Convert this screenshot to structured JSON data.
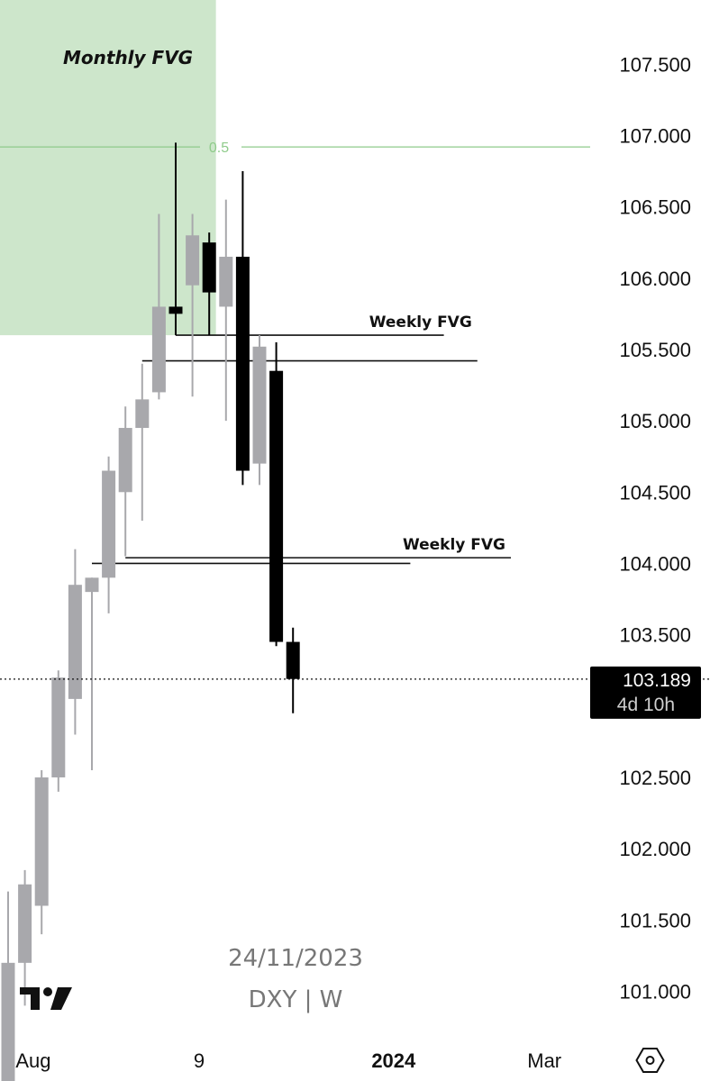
{
  "chart_data": {
    "type": "candlestick",
    "symbol": "DXY | W",
    "date": "24/11/2023",
    "current_price": "103.189",
    "countdown": "4d 10h",
    "ylim": [
      100.7,
      107.95
    ],
    "y_ticks": [
      "107.500",
      "107.000",
      "106.500",
      "106.000",
      "105.500",
      "105.000",
      "104.500",
      "104.000",
      "103.500",
      "103.000",
      "102.500",
      "102.000",
      "101.500",
      "101.000"
    ],
    "x_ticks": [
      {
        "label": "Aug",
        "bar": 1.5,
        "bold": false
      },
      {
        "label": "9",
        "bar": 11.4,
        "bold": false
      },
      {
        "label": "2024",
        "bar": 23.0,
        "bold": true
      },
      {
        "label": "Mar",
        "bar": 32.0,
        "bold": false
      }
    ],
    "candles": [
      {
        "o": 100.05,
        "h": 101.7,
        "l": 100.0,
        "c": 101.2,
        "dir": "up"
      },
      {
        "o": 101.2,
        "h": 101.85,
        "l": 100.9,
        "c": 101.75,
        "dir": "up"
      },
      {
        "o": 101.6,
        "h": 102.55,
        "l": 101.4,
        "c": 102.5,
        "dir": "up"
      },
      {
        "o": 102.5,
        "h": 103.25,
        "l": 102.4,
        "c": 103.2,
        "dir": "up"
      },
      {
        "o": 103.05,
        "h": 104.1,
        "l": 102.8,
        "c": 103.85,
        "dir": "up"
      },
      {
        "o": 103.8,
        "h": 103.9,
        "l": 102.55,
        "c": 103.9,
        "dir": "up"
      },
      {
        "o": 103.9,
        "h": 104.75,
        "l": 103.65,
        "c": 104.65,
        "dir": "up"
      },
      {
        "o": 104.5,
        "h": 105.1,
        "l": 104.05,
        "c": 104.95,
        "dir": "up"
      },
      {
        "o": 104.95,
        "h": 105.4,
        "l": 104.3,
        "c": 105.15,
        "dir": "up"
      },
      {
        "o": 105.2,
        "h": 106.45,
        "l": 105.15,
        "c": 105.8,
        "dir": "up"
      },
      {
        "o": 105.8,
        "h": 106.95,
        "l": 105.6,
        "c": 105.75,
        "dir": "down"
      },
      {
        "o": 105.95,
        "h": 106.45,
        "l": 105.17,
        "c": 106.3,
        "dir": "up"
      },
      {
        "o": 106.25,
        "h": 106.32,
        "l": 105.6,
        "c": 105.9,
        "dir": "down"
      },
      {
        "o": 105.8,
        "h": 106.55,
        "l": 105.0,
        "c": 106.15,
        "dir": "up"
      },
      {
        "o": 106.15,
        "h": 106.75,
        "l": 104.55,
        "c": 104.65,
        "dir": "down"
      },
      {
        "o": 104.7,
        "h": 105.6,
        "l": 104.55,
        "c": 105.52,
        "dir": "up"
      },
      {
        "o": 105.35,
        "h": 105.55,
        "l": 103.42,
        "c": 103.45,
        "dir": "down"
      },
      {
        "o": 103.45,
        "h": 103.55,
        "l": 102.95,
        "c": 103.19,
        "dir": "down"
      }
    ],
    "zones": [
      {
        "label": "Monthly FVG",
        "y_low": 105.6,
        "y_high": 108.0,
        "bar_start": -0.5,
        "bar_end": 12.4,
        "color": "#cde6cb"
      }
    ],
    "levels": [
      {
        "label": "0.5",
        "y": 106.92,
        "color": "#8fcb8b"
      }
    ],
    "annotations": [
      {
        "label": "Weekly FVG",
        "lines": [
          {
            "y": 105.6,
            "bar_start": 10.0,
            "bar_end": 26.0
          },
          {
            "y": 105.42,
            "bar_start": 8.0,
            "bar_end": 28.0
          }
        ]
      },
      {
        "label": "Weekly FVG",
        "lines": [
          {
            "y": 104.04,
            "bar_start": 7.0,
            "bar_end": 30.0
          },
          {
            "y": 104.0,
            "bar_start": 5.0,
            "bar_end": 24.0
          }
        ]
      }
    ],
    "colors": {
      "up": "#a8a8ac",
      "down": "#000000",
      "grid": "none",
      "price_box_bg": "#000000",
      "price_box_text": "#ffffff",
      "countdown_text": "#cfcfcf"
    }
  }
}
